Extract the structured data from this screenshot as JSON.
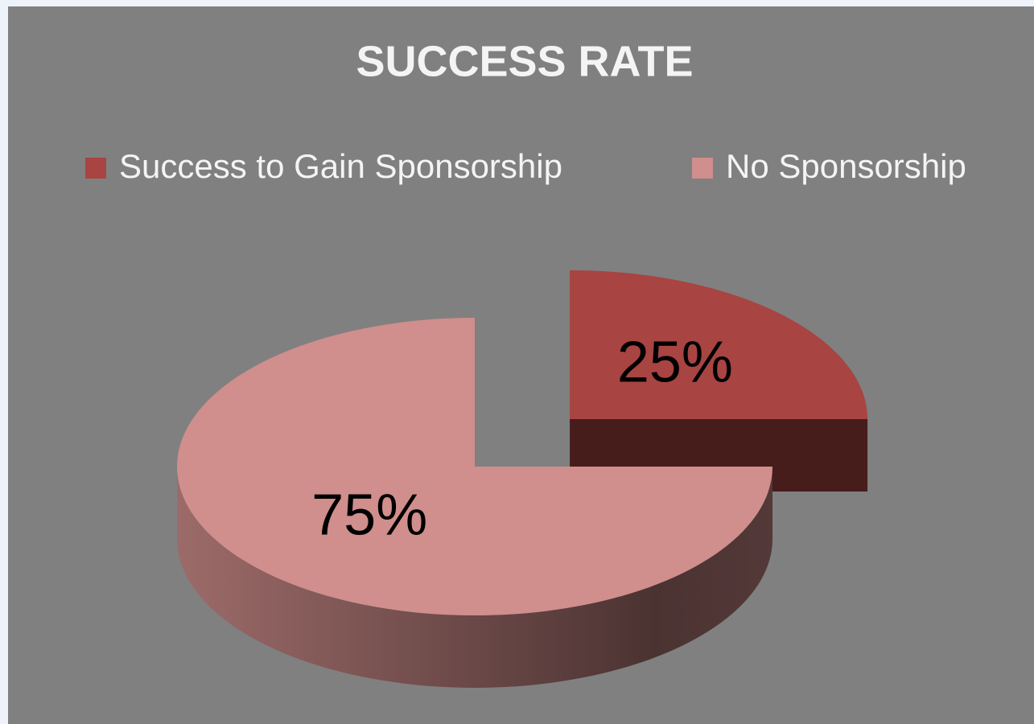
{
  "chart_data": {
    "type": "pie",
    "title": "SUCCESS RATE",
    "categories": [
      "Success to Gain Sponsorship",
      "No Sponsorship"
    ],
    "values": [
      25,
      75
    ],
    "value_labels": [
      "25%",
      "75%"
    ],
    "colors": [
      "#a84442",
      "#d08e8c"
    ],
    "legend": "top"
  }
}
